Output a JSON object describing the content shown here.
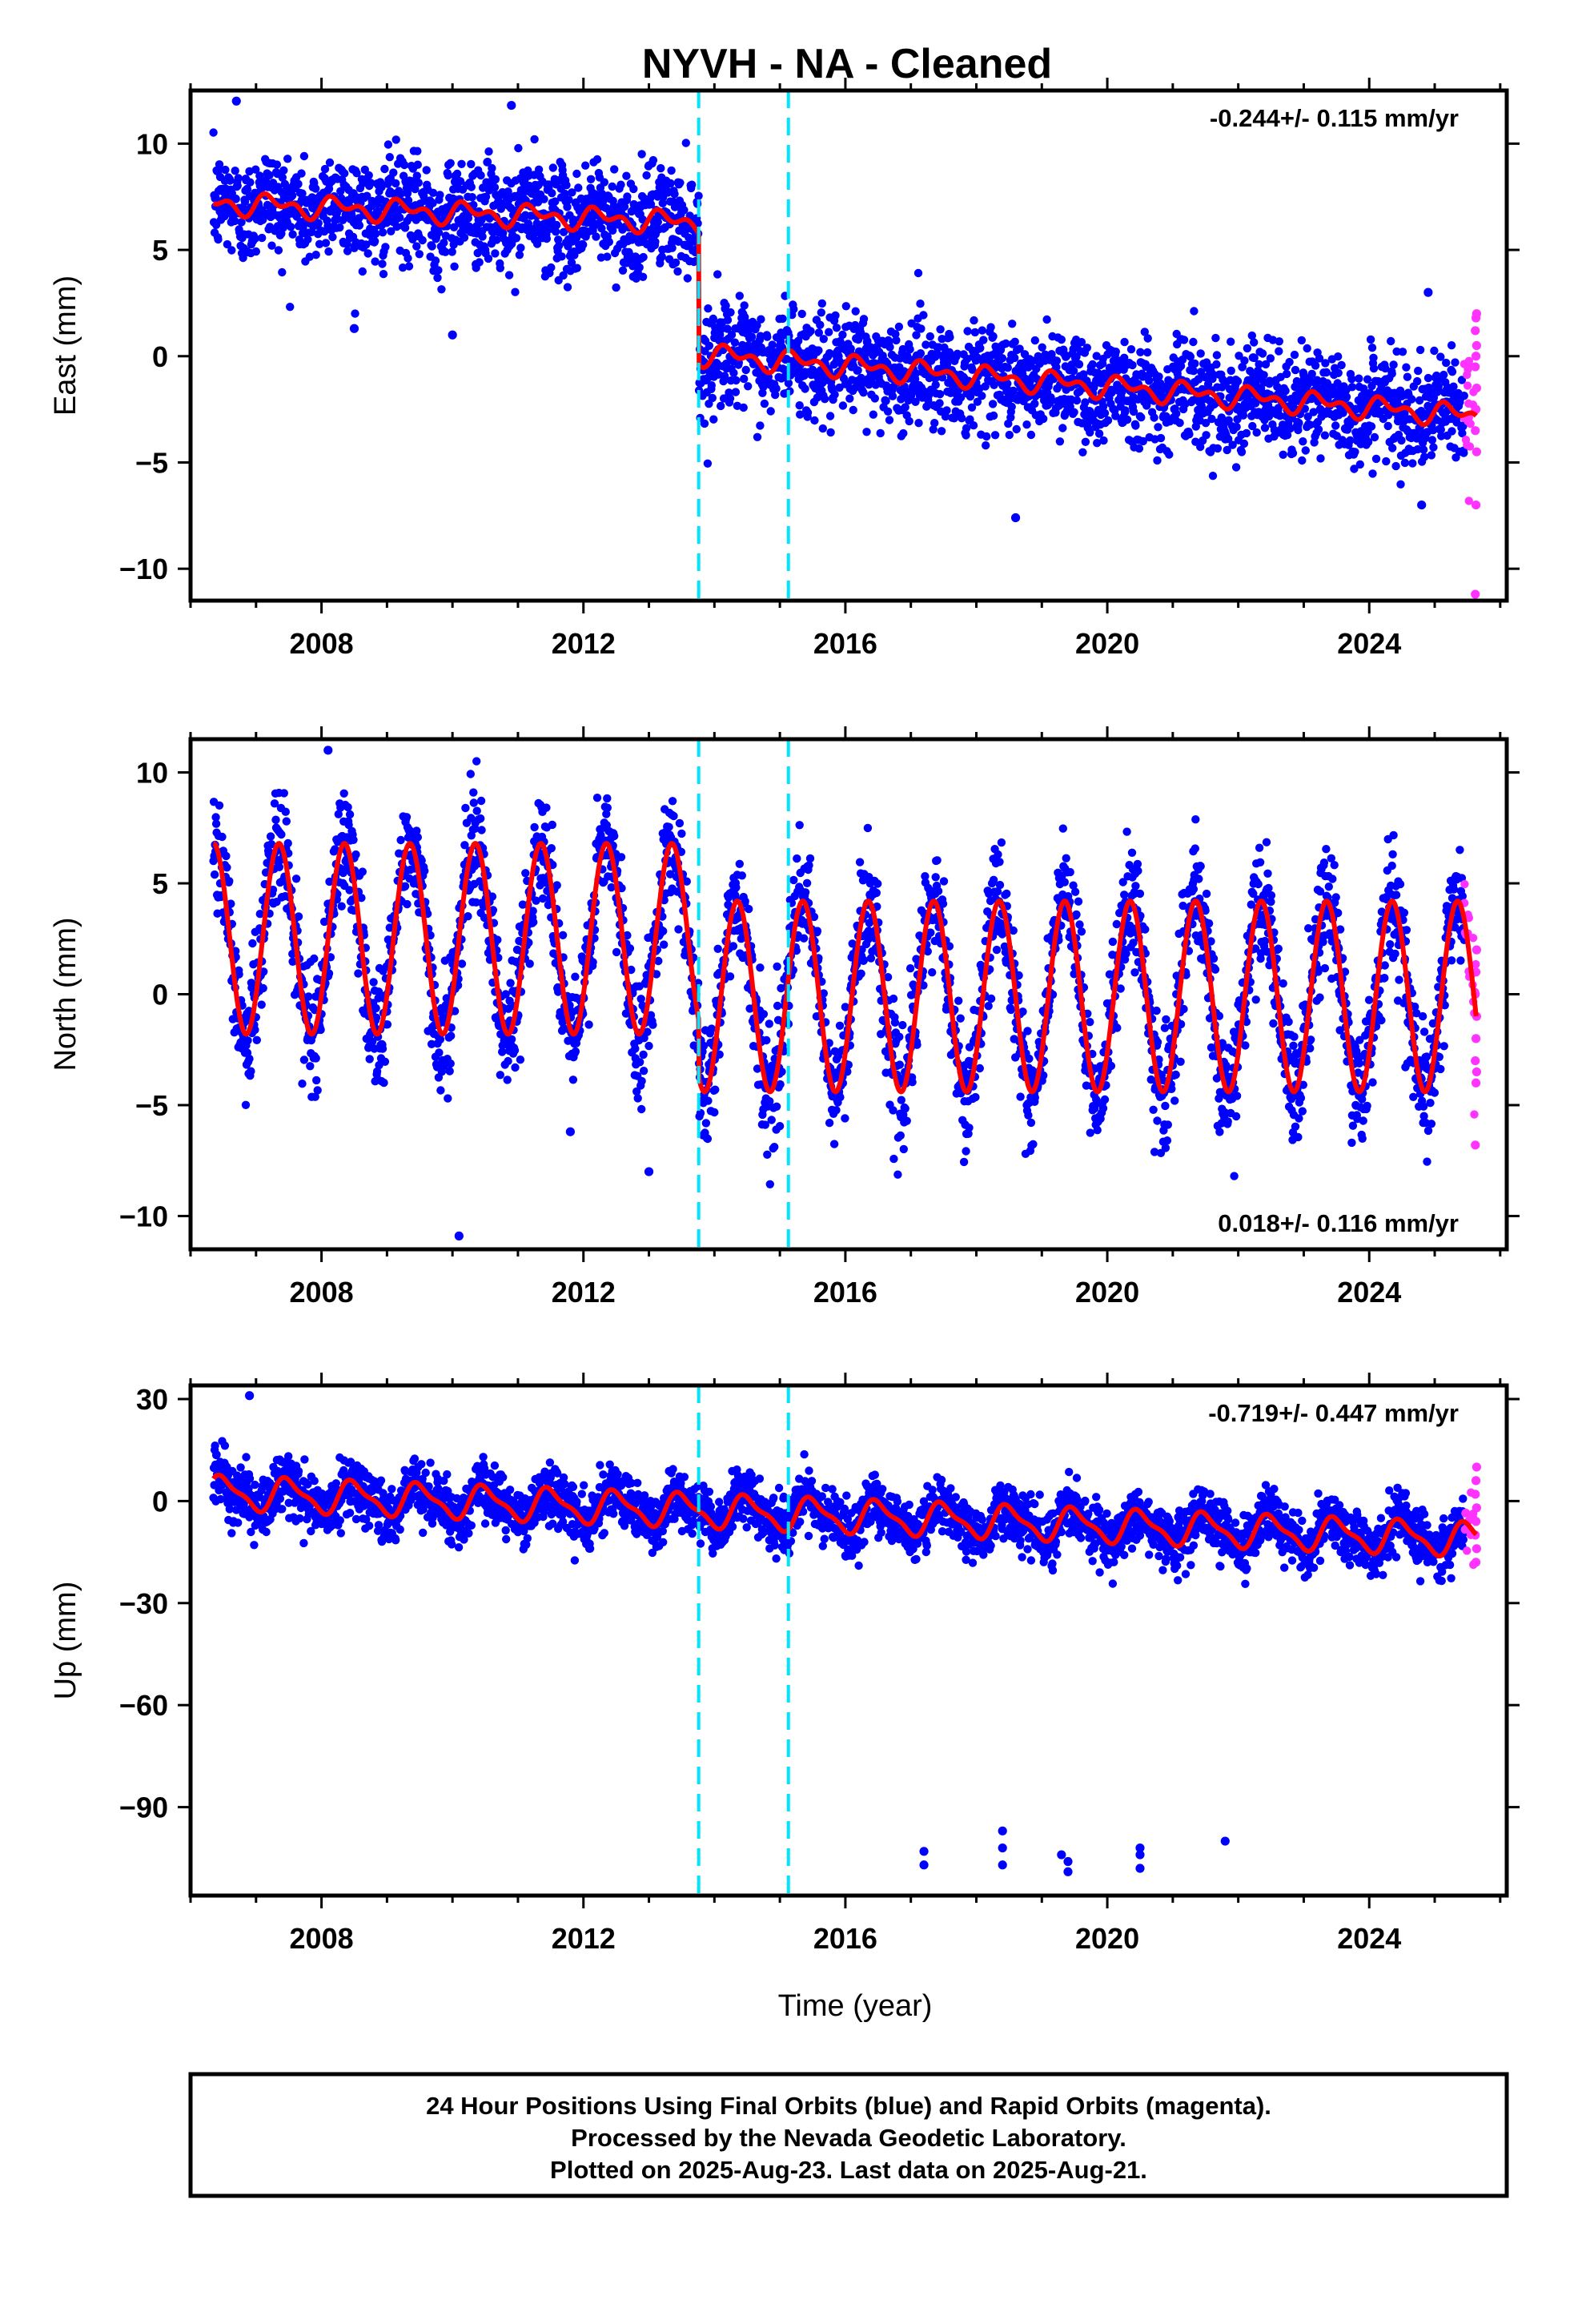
{
  "title": "NYVH  - NA - Cleaned",
  "colors": {
    "final_orbits": "#0000ff",
    "rapid_orbits": "#ff33ff",
    "model": "#ff0000",
    "steps": "#00e5ff",
    "frame": "#000000"
  },
  "footer": {
    "line1": "24 Hour Positions Using Final Orbits (blue) and Rapid Orbits (magenta).",
    "line2": "Processed by the Nevada Geodetic Laboratory.",
    "line3": "Plotted on 2025-Aug-23. Last data on 2025-Aug-21."
  },
  "chart_data": [
    {
      "type": "scatter",
      "name": "east",
      "ylabel": "East (mm)",
      "xlabel": "",
      "rate_text": "-0.244+/- 0.115 mm/yr",
      "rate_position": "top-right",
      "xlim": [
        2006.0,
        2026.1
      ],
      "ylim": [
        -11.5,
        12.5
      ],
      "x_ticks": [
        2008,
        2012,
        2016,
        2020,
        2024
      ],
      "y_ticks": [
        -10,
        -5,
        0,
        5,
        10
      ],
      "data_start": 2006.35,
      "final_end": 2025.45,
      "rapid_end": 2025.64,
      "step_epochs": [
        2013.76,
        2015.13
      ],
      "model": {
        "offset": 7.2,
        "rate_before_step": -0.124,
        "step_1": -6.2,
        "rate_after_step": -0.244,
        "annual_amplitude": 0.6,
        "scatter": 1.2
      },
      "rapid_orbit_values": [
        2.0,
        1.8,
        1.2,
        0.5,
        0.0,
        -0.5,
        -1.5,
        -2.5,
        -3.5,
        -4.5,
        -7.0,
        -11.2
      ],
      "outliers": [
        {
          "x": 2008.5,
          "y": 1.3
        },
        {
          "x": 2010.0,
          "y": 1.0
        },
        {
          "x": 2018.6,
          "y": -7.6
        },
        {
          "x": 2024.9,
          "y": 3.0
        },
        {
          "x": 2024.8,
          "y": -7.0
        },
        {
          "x": 2006.7,
          "y": 12.0
        },
        {
          "x": 2010.9,
          "y": 11.8
        }
      ]
    },
    {
      "type": "scatter",
      "name": "north",
      "ylabel": "North (mm)",
      "xlabel": "",
      "rate_text": "0.018+/- 0.116 mm/yr",
      "rate_position": "bottom-right",
      "xlim": [
        2006.0,
        2026.1
      ],
      "ylim": [
        -11.5,
        11.5
      ],
      "x_ticks": [
        2008,
        2012,
        2016,
        2020,
        2024
      ],
      "y_ticks": [
        -10,
        -5,
        0,
        5,
        10
      ],
      "data_start": 2006.35,
      "final_end": 2025.45,
      "rapid_end": 2025.64,
      "step_epochs": [
        2013.76,
        2015.13
      ],
      "model": {
        "offset_before": 2.5,
        "annual_amplitude_before": 4.3,
        "offset_after": -0.1,
        "annual_amplitude_after": 4.3,
        "scatter": 1.3
      },
      "rapid_orbit_values": [
        2.0,
        1.0,
        0.0,
        -1.0,
        -2.0,
        -3.0,
        -3.5,
        -4.0,
        -6.8
      ],
      "outliers": [
        {
          "x": 2010.1,
          "y": -10.9
        },
        {
          "x": 2011.8,
          "y": -6.2
        },
        {
          "x": 2013.0,
          "y": -8.0
        },
        {
          "x": 2008.1,
          "y": 11.0
        }
      ]
    },
    {
      "type": "scatter",
      "name": "up",
      "ylabel": "Up (mm)",
      "xlabel": "Time (year)",
      "rate_text": "-0.719+/- 0.447 mm/yr",
      "rate_position": "top-right",
      "xlim": [
        2006.0,
        2026.1
      ],
      "ylim": [
        -116,
        34
      ],
      "x_ticks": [
        2008,
        2012,
        2016,
        2020,
        2024
      ],
      "y_ticks": [
        -90,
        -60,
        -30,
        0,
        30
      ],
      "data_start": 2006.35,
      "final_end": 2025.45,
      "rapid_end": 2025.64,
      "step_epochs": [
        2013.76,
        2015.13
      ],
      "model": {
        "offset": 2.5,
        "rate": -0.719,
        "annual_amplitude": 4.5,
        "scatter": 4.0
      },
      "rapid_orbit_values": [
        10,
        6,
        2,
        -2,
        -6,
        -10,
        -14,
        -18
      ],
      "outliers": [
        {
          "x": 2006.9,
          "y": 31
        },
        {
          "x": 2017.2,
          "y": -103
        },
        {
          "x": 2017.2,
          "y": -107
        },
        {
          "x": 2018.4,
          "y": -97
        },
        {
          "x": 2018.4,
          "y": -102
        },
        {
          "x": 2018.4,
          "y": -107
        },
        {
          "x": 2019.3,
          "y": -104
        },
        {
          "x": 2019.4,
          "y": -106
        },
        {
          "x": 2019.4,
          "y": -109
        },
        {
          "x": 2020.5,
          "y": -102
        },
        {
          "x": 2020.5,
          "y": -104
        },
        {
          "x": 2020.5,
          "y": -108
        },
        {
          "x": 2021.8,
          "y": -100
        }
      ]
    }
  ]
}
